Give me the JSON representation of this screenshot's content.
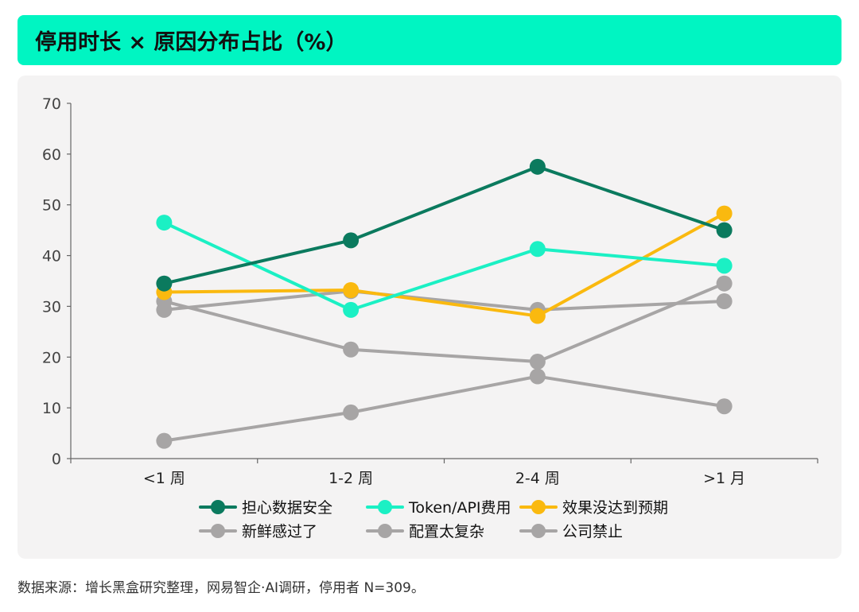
{
  "title": "停用时长 × 原因分布占比（%）",
  "source": "数据来源：增长黑盒研究整理，网易智企·AI调研，停用者 N=309。",
  "colors": {
    "title_bar": "#00F5C2",
    "panel_background": "#F4F3F3"
  },
  "chart_data": {
    "type": "line",
    "title": "停用时长 × 原因分布占比（%）",
    "xlabel": "",
    "ylabel": "",
    "categories": [
      "<1 周",
      "1-2 周",
      "2-4 周",
      ">1 月"
    ],
    "ylim": [
      0,
      70
    ],
    "yticks": [
      0,
      10,
      20,
      30,
      40,
      50,
      60,
      70
    ],
    "grid": false,
    "legend_position": "bottom",
    "series": [
      {
        "name": "担心数据安全",
        "color": "#0B7A5E",
        "values": [
          34.5,
          43,
          57.5,
          45
        ]
      },
      {
        "name": "Token/API费用",
        "color": "#1BF0C4",
        "values": [
          46.5,
          29.3,
          41.3,
          38
        ]
      },
      {
        "name": "效果没达到预期",
        "color": "#FAB90F",
        "values": [
          32.8,
          33.2,
          28.1,
          48.3
        ]
      },
      {
        "name": "新鲜感过了",
        "color": "#A7A5A5",
        "values": [
          31,
          21.5,
          19.1,
          34.5
        ]
      },
      {
        "name": "配置太复杂",
        "color": "#A7A5A5",
        "values": [
          29.3,
          33,
          29.3,
          31
        ]
      },
      {
        "name": "公司禁止",
        "color": "#A7A5A5",
        "values": [
          3.5,
          9.1,
          16.2,
          10.3
        ]
      }
    ]
  }
}
